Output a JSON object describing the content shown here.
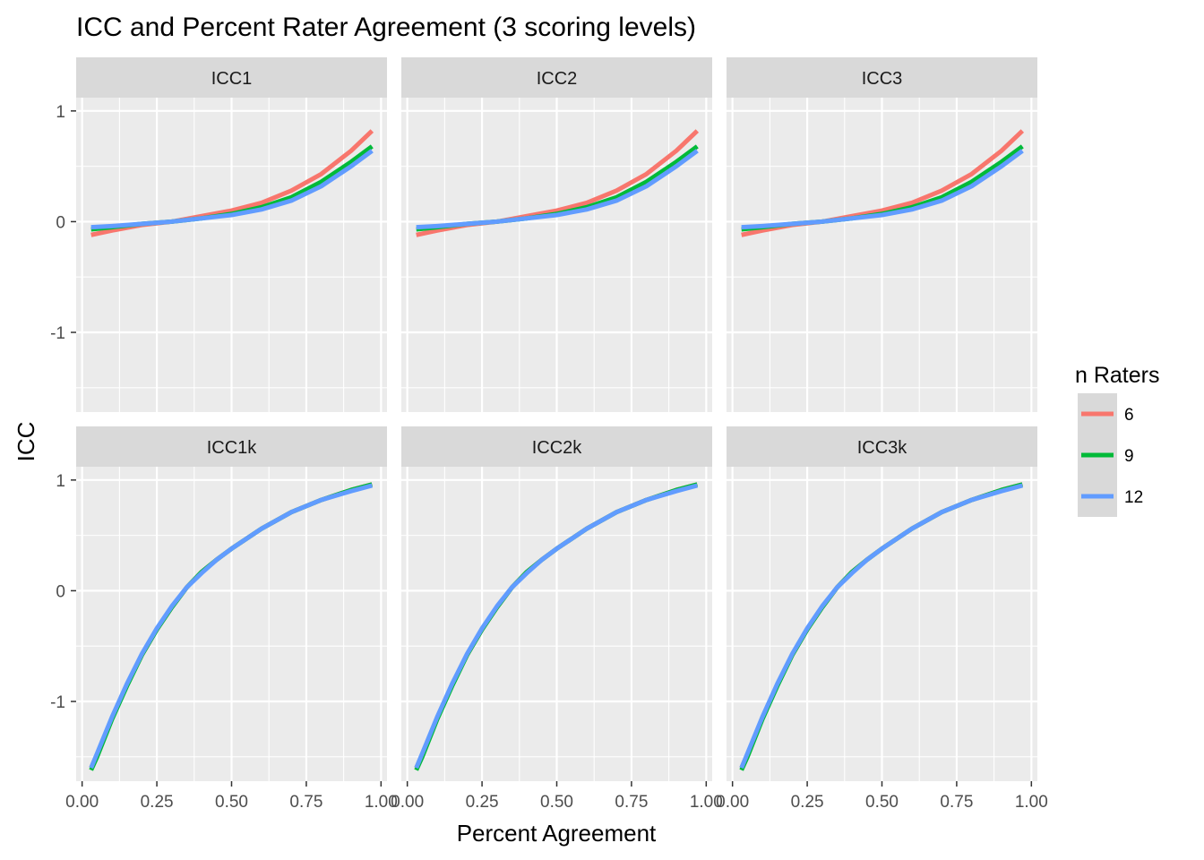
{
  "chart_data": {
    "type": "line",
    "title": "ICC and Percent Rater Agreement (3 scoring levels)",
    "xlabel": "Percent Agreement",
    "ylabel": "ICC",
    "xlim": [
      -0.02,
      1.02
    ],
    "ylim": [
      -1.72,
      1.12
    ],
    "x_ticks": [
      0,
      0.25,
      0.5,
      0.75,
      1
    ],
    "x_tick_labels": [
      "0.00",
      "0.25",
      "0.50",
      "0.75",
      "1.00"
    ],
    "y_ticks": [
      -1,
      0,
      1
    ],
    "y_tick_labels": [
      "-1",
      "0",
      "1"
    ],
    "grid": true,
    "legend": {
      "title": "n Raters",
      "position": "right",
      "entries": [
        {
          "label": "6",
          "color": "#F8766D"
        },
        {
          "label": "9",
          "color": "#00BA38"
        },
        {
          "label": "12",
          "color": "#619CFF"
        }
      ]
    },
    "panels": [
      {
        "strip": "ICC1",
        "series": [
          {
            "name": "6",
            "color": "#F8766D",
            "x": [
              0.03,
              0.1,
              0.2,
              0.3,
              0.4,
              0.5,
              0.6,
              0.7,
              0.8,
              0.9,
              0.97
            ],
            "y": [
              -0.12,
              -0.08,
              -0.03,
              0.0,
              0.05,
              0.1,
              0.17,
              0.28,
              0.43,
              0.64,
              0.82
            ]
          },
          {
            "name": "9",
            "color": "#00BA38",
            "x": [
              0.03,
              0.1,
              0.2,
              0.3,
              0.4,
              0.5,
              0.6,
              0.7,
              0.8,
              0.9,
              0.97
            ],
            "y": [
              -0.07,
              -0.05,
              -0.02,
              0.0,
              0.03,
              0.07,
              0.13,
              0.22,
              0.36,
              0.54,
              0.68
            ]
          },
          {
            "name": "12",
            "color": "#619CFF",
            "x": [
              0.03,
              0.1,
              0.2,
              0.3,
              0.4,
              0.5,
              0.6,
              0.7,
              0.8,
              0.9,
              0.97
            ],
            "y": [
              -0.05,
              -0.04,
              -0.02,
              0.0,
              0.03,
              0.06,
              0.11,
              0.19,
              0.32,
              0.5,
              0.64
            ]
          }
        ]
      },
      {
        "strip": "ICC2",
        "series": [
          {
            "name": "6",
            "color": "#F8766D",
            "x": [
              0.03,
              0.1,
              0.2,
              0.3,
              0.4,
              0.5,
              0.6,
              0.7,
              0.8,
              0.9,
              0.97
            ],
            "y": [
              -0.12,
              -0.08,
              -0.03,
              0.0,
              0.05,
              0.1,
              0.17,
              0.28,
              0.43,
              0.64,
              0.82
            ]
          },
          {
            "name": "9",
            "color": "#00BA38",
            "x": [
              0.03,
              0.1,
              0.2,
              0.3,
              0.4,
              0.5,
              0.6,
              0.7,
              0.8,
              0.9,
              0.97
            ],
            "y": [
              -0.07,
              -0.05,
              -0.02,
              0.0,
              0.03,
              0.07,
              0.13,
              0.22,
              0.36,
              0.54,
              0.68
            ]
          },
          {
            "name": "12",
            "color": "#619CFF",
            "x": [
              0.03,
              0.1,
              0.2,
              0.3,
              0.4,
              0.5,
              0.6,
              0.7,
              0.8,
              0.9,
              0.97
            ],
            "y": [
              -0.05,
              -0.04,
              -0.02,
              0.0,
              0.03,
              0.06,
              0.11,
              0.19,
              0.32,
              0.5,
              0.64
            ]
          }
        ]
      },
      {
        "strip": "ICC3",
        "series": [
          {
            "name": "6",
            "color": "#F8766D",
            "x": [
              0.03,
              0.1,
              0.2,
              0.3,
              0.4,
              0.5,
              0.6,
              0.7,
              0.8,
              0.9,
              0.97
            ],
            "y": [
              -0.12,
              -0.08,
              -0.03,
              0.0,
              0.05,
              0.1,
              0.17,
              0.28,
              0.43,
              0.64,
              0.82
            ]
          },
          {
            "name": "9",
            "color": "#00BA38",
            "x": [
              0.03,
              0.1,
              0.2,
              0.3,
              0.4,
              0.5,
              0.6,
              0.7,
              0.8,
              0.9,
              0.97
            ],
            "y": [
              -0.07,
              -0.05,
              -0.02,
              0.0,
              0.03,
              0.07,
              0.13,
              0.22,
              0.36,
              0.54,
              0.68
            ]
          },
          {
            "name": "12",
            "color": "#619CFF",
            "x": [
              0.03,
              0.1,
              0.2,
              0.3,
              0.4,
              0.5,
              0.6,
              0.7,
              0.8,
              0.9,
              0.97
            ],
            "y": [
              -0.05,
              -0.04,
              -0.02,
              0.0,
              0.03,
              0.06,
              0.11,
              0.19,
              0.32,
              0.5,
              0.64
            ]
          }
        ]
      },
      {
        "strip": "ICC1k",
        "series": [
          {
            "name": "6",
            "color": "#F8766D",
            "x": [
              0.03,
              0.05,
              0.1,
              0.15,
              0.2,
              0.25,
              0.3,
              0.35,
              0.4,
              0.45,
              0.5,
              0.6,
              0.7,
              0.8,
              0.9,
              0.97
            ],
            "y": [
              -1.6,
              -1.48,
              -1.15,
              -0.85,
              -0.58,
              -0.35,
              -0.15,
              0.03,
              0.17,
              0.28,
              0.38,
              0.56,
              0.71,
              0.82,
              0.91,
              0.96
            ]
          },
          {
            "name": "9",
            "color": "#00BA38",
            "x": [
              0.03,
              0.05,
              0.1,
              0.15,
              0.2,
              0.25,
              0.3,
              0.35,
              0.4,
              0.45,
              0.5,
              0.6,
              0.7,
              0.8,
              0.9,
              0.97
            ],
            "y": [
              -1.62,
              -1.5,
              -1.16,
              -0.86,
              -0.58,
              -0.35,
              -0.15,
              0.03,
              0.17,
              0.28,
              0.38,
              0.56,
              0.71,
              0.82,
              0.91,
              0.96
            ]
          },
          {
            "name": "12",
            "color": "#619CFF",
            "x": [
              0.03,
              0.05,
              0.1,
              0.15,
              0.2,
              0.25,
              0.3,
              0.35,
              0.4,
              0.45,
              0.5,
              0.6,
              0.7,
              0.8,
              0.9,
              0.97
            ],
            "y": [
              -1.6,
              -1.47,
              -1.14,
              -0.84,
              -0.57,
              -0.34,
              -0.14,
              0.03,
              0.16,
              0.28,
              0.38,
              0.56,
              0.71,
              0.82,
              0.9,
              0.95
            ]
          }
        ]
      },
      {
        "strip": "ICC2k",
        "series": [
          {
            "name": "6",
            "color": "#F8766D",
            "x": [
              0.03,
              0.05,
              0.1,
              0.15,
              0.2,
              0.25,
              0.3,
              0.35,
              0.4,
              0.45,
              0.5,
              0.6,
              0.7,
              0.8,
              0.9,
              0.97
            ],
            "y": [
              -1.6,
              -1.48,
              -1.15,
              -0.85,
              -0.58,
              -0.35,
              -0.15,
              0.03,
              0.17,
              0.28,
              0.38,
              0.56,
              0.71,
              0.82,
              0.91,
              0.96
            ]
          },
          {
            "name": "9",
            "color": "#00BA38",
            "x": [
              0.03,
              0.05,
              0.1,
              0.15,
              0.2,
              0.25,
              0.3,
              0.35,
              0.4,
              0.45,
              0.5,
              0.6,
              0.7,
              0.8,
              0.9,
              0.97
            ],
            "y": [
              -1.62,
              -1.5,
              -1.16,
              -0.86,
              -0.58,
              -0.35,
              -0.15,
              0.03,
              0.17,
              0.28,
              0.38,
              0.56,
              0.71,
              0.82,
              0.91,
              0.96
            ]
          },
          {
            "name": "12",
            "color": "#619CFF",
            "x": [
              0.03,
              0.05,
              0.1,
              0.15,
              0.2,
              0.25,
              0.3,
              0.35,
              0.4,
              0.45,
              0.5,
              0.6,
              0.7,
              0.8,
              0.9,
              0.97
            ],
            "y": [
              -1.6,
              -1.47,
              -1.14,
              -0.84,
              -0.57,
              -0.34,
              -0.14,
              0.03,
              0.16,
              0.28,
              0.38,
              0.56,
              0.71,
              0.82,
              0.9,
              0.95
            ]
          }
        ]
      },
      {
        "strip": "ICC3k",
        "series": [
          {
            "name": "6",
            "color": "#F8766D",
            "x": [
              0.03,
              0.05,
              0.1,
              0.15,
              0.2,
              0.25,
              0.3,
              0.35,
              0.4,
              0.45,
              0.5,
              0.6,
              0.7,
              0.8,
              0.9,
              0.97
            ],
            "y": [
              -1.6,
              -1.48,
              -1.15,
              -0.85,
              -0.58,
              -0.35,
              -0.15,
              0.03,
              0.17,
              0.28,
              0.38,
              0.56,
              0.71,
              0.82,
              0.91,
              0.96
            ]
          },
          {
            "name": "9",
            "color": "#00BA38",
            "x": [
              0.03,
              0.05,
              0.1,
              0.15,
              0.2,
              0.25,
              0.3,
              0.35,
              0.4,
              0.45,
              0.5,
              0.6,
              0.7,
              0.8,
              0.9,
              0.97
            ],
            "y": [
              -1.62,
              -1.5,
              -1.16,
              -0.86,
              -0.58,
              -0.35,
              -0.15,
              0.03,
              0.17,
              0.28,
              0.38,
              0.56,
              0.71,
              0.82,
              0.91,
              0.96
            ]
          },
          {
            "name": "12",
            "color": "#619CFF",
            "x": [
              0.03,
              0.05,
              0.1,
              0.15,
              0.2,
              0.25,
              0.3,
              0.35,
              0.4,
              0.45,
              0.5,
              0.6,
              0.7,
              0.8,
              0.9,
              0.97
            ],
            "y": [
              -1.6,
              -1.47,
              -1.14,
              -0.84,
              -0.57,
              -0.34,
              -0.14,
              0.03,
              0.16,
              0.28,
              0.38,
              0.56,
              0.71,
              0.82,
              0.9,
              0.95
            ]
          }
        ]
      }
    ]
  }
}
